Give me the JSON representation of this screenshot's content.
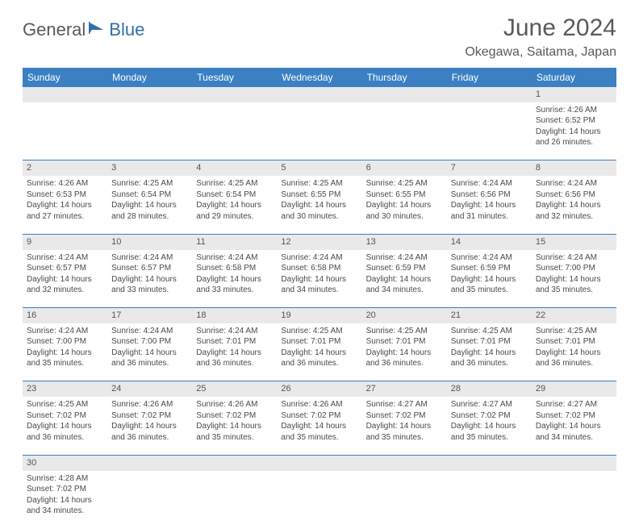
{
  "logo": {
    "part1": "General",
    "part2": "Blue"
  },
  "title": "June 2024",
  "location": "Okegawa, Saitama, Japan",
  "colors": {
    "header_bg": "#3a80c3",
    "header_fg": "#ffffff",
    "daynum_bg": "#e9e9e9",
    "text": "#4a4a4a",
    "logo_gray": "#5a5a5a",
    "logo_blue": "#2f6fa8",
    "border": "#3a80c3"
  },
  "weekdays": [
    "Sunday",
    "Monday",
    "Tuesday",
    "Wednesday",
    "Thursday",
    "Friday",
    "Saturday"
  ],
  "weeks": [
    {
      "nums": [
        "",
        "",
        "",
        "",
        "",
        "",
        "1"
      ],
      "cells": [
        null,
        null,
        null,
        null,
        null,
        null,
        {
          "sr": "Sunrise: 4:26 AM",
          "ss": "Sunset: 6:52 PM",
          "d1": "Daylight: 14 hours",
          "d2": "and 26 minutes."
        }
      ]
    },
    {
      "nums": [
        "2",
        "3",
        "4",
        "5",
        "6",
        "7",
        "8"
      ],
      "cells": [
        {
          "sr": "Sunrise: 4:26 AM",
          "ss": "Sunset: 6:53 PM",
          "d1": "Daylight: 14 hours",
          "d2": "and 27 minutes."
        },
        {
          "sr": "Sunrise: 4:25 AM",
          "ss": "Sunset: 6:54 PM",
          "d1": "Daylight: 14 hours",
          "d2": "and 28 minutes."
        },
        {
          "sr": "Sunrise: 4:25 AM",
          "ss": "Sunset: 6:54 PM",
          "d1": "Daylight: 14 hours",
          "d2": "and 29 minutes."
        },
        {
          "sr": "Sunrise: 4:25 AM",
          "ss": "Sunset: 6:55 PM",
          "d1": "Daylight: 14 hours",
          "d2": "and 30 minutes."
        },
        {
          "sr": "Sunrise: 4:25 AM",
          "ss": "Sunset: 6:55 PM",
          "d1": "Daylight: 14 hours",
          "d2": "and 30 minutes."
        },
        {
          "sr": "Sunrise: 4:24 AM",
          "ss": "Sunset: 6:56 PM",
          "d1": "Daylight: 14 hours",
          "d2": "and 31 minutes."
        },
        {
          "sr": "Sunrise: 4:24 AM",
          "ss": "Sunset: 6:56 PM",
          "d1": "Daylight: 14 hours",
          "d2": "and 32 minutes."
        }
      ]
    },
    {
      "nums": [
        "9",
        "10",
        "11",
        "12",
        "13",
        "14",
        "15"
      ],
      "cells": [
        {
          "sr": "Sunrise: 4:24 AM",
          "ss": "Sunset: 6:57 PM",
          "d1": "Daylight: 14 hours",
          "d2": "and 32 minutes."
        },
        {
          "sr": "Sunrise: 4:24 AM",
          "ss": "Sunset: 6:57 PM",
          "d1": "Daylight: 14 hours",
          "d2": "and 33 minutes."
        },
        {
          "sr": "Sunrise: 4:24 AM",
          "ss": "Sunset: 6:58 PM",
          "d1": "Daylight: 14 hours",
          "d2": "and 33 minutes."
        },
        {
          "sr": "Sunrise: 4:24 AM",
          "ss": "Sunset: 6:58 PM",
          "d1": "Daylight: 14 hours",
          "d2": "and 34 minutes."
        },
        {
          "sr": "Sunrise: 4:24 AM",
          "ss": "Sunset: 6:59 PM",
          "d1": "Daylight: 14 hours",
          "d2": "and 34 minutes."
        },
        {
          "sr": "Sunrise: 4:24 AM",
          "ss": "Sunset: 6:59 PM",
          "d1": "Daylight: 14 hours",
          "d2": "and 35 minutes."
        },
        {
          "sr": "Sunrise: 4:24 AM",
          "ss": "Sunset: 7:00 PM",
          "d1": "Daylight: 14 hours",
          "d2": "and 35 minutes."
        }
      ]
    },
    {
      "nums": [
        "16",
        "17",
        "18",
        "19",
        "20",
        "21",
        "22"
      ],
      "cells": [
        {
          "sr": "Sunrise: 4:24 AM",
          "ss": "Sunset: 7:00 PM",
          "d1": "Daylight: 14 hours",
          "d2": "and 35 minutes."
        },
        {
          "sr": "Sunrise: 4:24 AM",
          "ss": "Sunset: 7:00 PM",
          "d1": "Daylight: 14 hours",
          "d2": "and 36 minutes."
        },
        {
          "sr": "Sunrise: 4:24 AM",
          "ss": "Sunset: 7:01 PM",
          "d1": "Daylight: 14 hours",
          "d2": "and 36 minutes."
        },
        {
          "sr": "Sunrise: 4:25 AM",
          "ss": "Sunset: 7:01 PM",
          "d1": "Daylight: 14 hours",
          "d2": "and 36 minutes."
        },
        {
          "sr": "Sunrise: 4:25 AM",
          "ss": "Sunset: 7:01 PM",
          "d1": "Daylight: 14 hours",
          "d2": "and 36 minutes."
        },
        {
          "sr": "Sunrise: 4:25 AM",
          "ss": "Sunset: 7:01 PM",
          "d1": "Daylight: 14 hours",
          "d2": "and 36 minutes."
        },
        {
          "sr": "Sunrise: 4:25 AM",
          "ss": "Sunset: 7:01 PM",
          "d1": "Daylight: 14 hours",
          "d2": "and 36 minutes."
        }
      ]
    },
    {
      "nums": [
        "23",
        "24",
        "25",
        "26",
        "27",
        "28",
        "29"
      ],
      "cells": [
        {
          "sr": "Sunrise: 4:25 AM",
          "ss": "Sunset: 7:02 PM",
          "d1": "Daylight: 14 hours",
          "d2": "and 36 minutes."
        },
        {
          "sr": "Sunrise: 4:26 AM",
          "ss": "Sunset: 7:02 PM",
          "d1": "Daylight: 14 hours",
          "d2": "and 36 minutes."
        },
        {
          "sr": "Sunrise: 4:26 AM",
          "ss": "Sunset: 7:02 PM",
          "d1": "Daylight: 14 hours",
          "d2": "and 35 minutes."
        },
        {
          "sr": "Sunrise: 4:26 AM",
          "ss": "Sunset: 7:02 PM",
          "d1": "Daylight: 14 hours",
          "d2": "and 35 minutes."
        },
        {
          "sr": "Sunrise: 4:27 AM",
          "ss": "Sunset: 7:02 PM",
          "d1": "Daylight: 14 hours",
          "d2": "and 35 minutes."
        },
        {
          "sr": "Sunrise: 4:27 AM",
          "ss": "Sunset: 7:02 PM",
          "d1": "Daylight: 14 hours",
          "d2": "and 35 minutes."
        },
        {
          "sr": "Sunrise: 4:27 AM",
          "ss": "Sunset: 7:02 PM",
          "d1": "Daylight: 14 hours",
          "d2": "and 34 minutes."
        }
      ]
    },
    {
      "nums": [
        "30",
        "",
        "",
        "",
        "",
        "",
        ""
      ],
      "cells": [
        {
          "sr": "Sunrise: 4:28 AM",
          "ss": "Sunset: 7:02 PM",
          "d1": "Daylight: 14 hours",
          "d2": "and 34 minutes."
        },
        null,
        null,
        null,
        null,
        null,
        null
      ],
      "last": true
    }
  ]
}
